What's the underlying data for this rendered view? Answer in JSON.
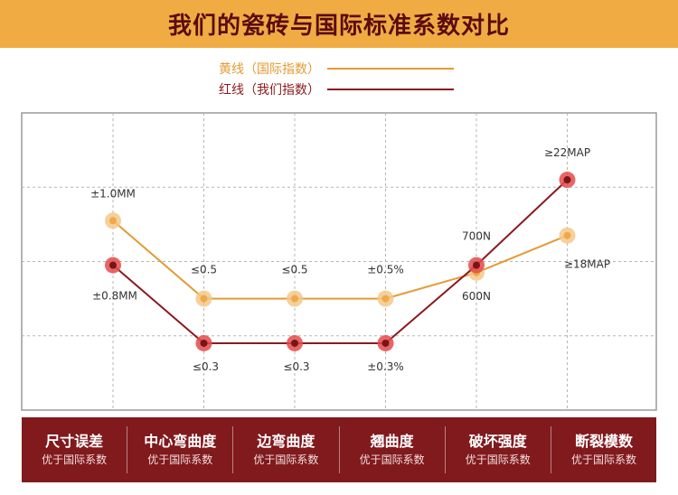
{
  "header": {
    "title": "我们的瓷砖与国际标准系数对比"
  },
  "legend": {
    "yellow": {
      "label": "黄线（国际指数）",
      "color": "#e49a33"
    },
    "red": {
      "label": "红线（我们指数）",
      "color": "#8a1a1e"
    }
  },
  "chart_data": {
    "type": "line",
    "categories": [
      "尺寸误差",
      "中心弯曲度",
      "边弯曲度",
      "翘曲度",
      "破坏强度",
      "断裂模数"
    ],
    "ylim": [
      0,
      4
    ],
    "grid": true,
    "series": [
      {
        "name": "黄线（国际指数）",
        "color": "#e49a33",
        "values": [
          2.55,
          1.5,
          1.5,
          1.5,
          1.85,
          2.35
        ],
        "labels": [
          "±1.0MM",
          "≤0.5",
          "≤0.5",
          "±0.5%",
          "600N",
          "≥18MAP"
        ]
      },
      {
        "name": "红线（我们指数）",
        "color": "#8a1a1e",
        "values": [
          1.95,
          0.9,
          0.9,
          0.9,
          1.95,
          3.1
        ],
        "labels": [
          "±0.8MM",
          "≤0.3",
          "≤0.3",
          "±0.3%",
          "700N",
          "≥22MAP"
        ]
      }
    ]
  },
  "footer": {
    "items": [
      {
        "title": "尺寸误差",
        "sub": "优于国际系数"
      },
      {
        "title": "中心弯曲度",
        "sub": "优于国际系数"
      },
      {
        "title": "边弯曲度",
        "sub": "优于国际系数"
      },
      {
        "title": "翘曲度",
        "sub": "优于国际系数"
      },
      {
        "title": "破坏强度",
        "sub": "优于国际系数"
      },
      {
        "title": "断裂模数",
        "sub": "优于国际系数"
      }
    ]
  }
}
